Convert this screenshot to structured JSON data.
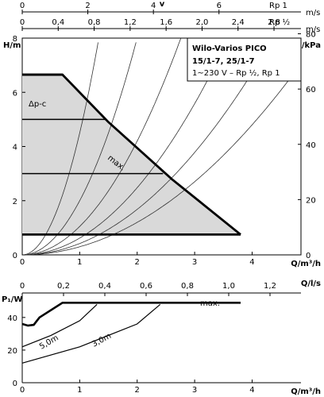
{
  "chart_data": [
    {
      "type": "area",
      "name_visible": false,
      "y_axis_label": "H/m",
      "y2_axis_label": "p/kPa",
      "x_axis_label": "Q/m³/h",
      "xlim": [
        0,
        4.85
      ],
      "ylim": [
        0,
        8
      ],
      "x_ticks": [
        "0",
        "1",
        "2",
        "3",
        "4"
      ],
      "y_ticks": [
        "0",
        "2",
        "4",
        "6",
        "8"
      ],
      "y2_ticks": [
        "0",
        "20",
        "40",
        "60",
        "80"
      ],
      "top_axes": [
        {
          "unit": "m/s",
          "sub_unit": "Rp 1",
          "ticks": [
            "0",
            "2",
            "4",
            "6"
          ],
          "max": 8.5
        },
        {
          "unit": "m/s",
          "sub_unit": "Rp ½",
          "ticks": [
            "0",
            "0,4",
            "0,8",
            "1,2",
            "1,6",
            "2,0",
            "2,4",
            "2,8"
          ],
          "max": 3.1
        }
      ],
      "top_title": "v",
      "legend_box": {
        "title": "Wilo-Varios PICO",
        "model": "15/1-7, 25/1-7",
        "spec": "1~230 V – Rp ½, Rp 1"
      },
      "annotations": [
        "Δp-c",
        "max."
      ],
      "max_curve": {
        "x": [
          0,
          0.7,
          1.5,
          2.6,
          3.8
        ],
        "y": [
          6.65,
          6.65,
          4.9,
          2.8,
          0.75
        ]
      },
      "constant_pressure_levels": [
        {
          "y": 6.65,
          "x_end": 0.7
        },
        {
          "y": 5.0,
          "x_end": 1.45
        },
        {
          "y": 3.0,
          "x_end": 2.45
        },
        {
          "y": 0.75,
          "x_end": 3.8
        }
      ],
      "system_curves_k": [
        4.5,
        2.0,
        1.05,
        0.62,
        0.42,
        0.3
      ]
    },
    {
      "type": "line",
      "y_axis_label": "P₁/W",
      "x_axis_label": "Q/m³/h",
      "xlim": [
        0,
        4.85
      ],
      "ylim": [
        0,
        55
      ],
      "x_ticks": [
        "0",
        "1",
        "2",
        "3",
        "4"
      ],
      "y_ticks": [
        "0",
        "20",
        "40"
      ],
      "top_axis": {
        "unit": "Q/l/s",
        "ticks": [
          "0",
          "0,2",
          "0,4",
          "0,6",
          "0,8",
          "1,0",
          "1,2"
        ],
        "max": 1.35
      },
      "series": [
        {
          "name": "max.",
          "x": [
            0,
            0.1,
            0.2,
            0.3,
            0.7,
            3.8
          ],
          "y": [
            36,
            35,
            35.5,
            40,
            49,
            49
          ]
        },
        {
          "name": "5,0m",
          "x": [
            0,
            0.5,
            1,
            1.3
          ],
          "y": [
            22,
            29,
            38,
            48
          ]
        },
        {
          "name": "3,0m",
          "x": [
            0,
            1,
            2,
            2.4
          ],
          "y": [
            12,
            22,
            36,
            48
          ]
        }
      ]
    }
  ]
}
